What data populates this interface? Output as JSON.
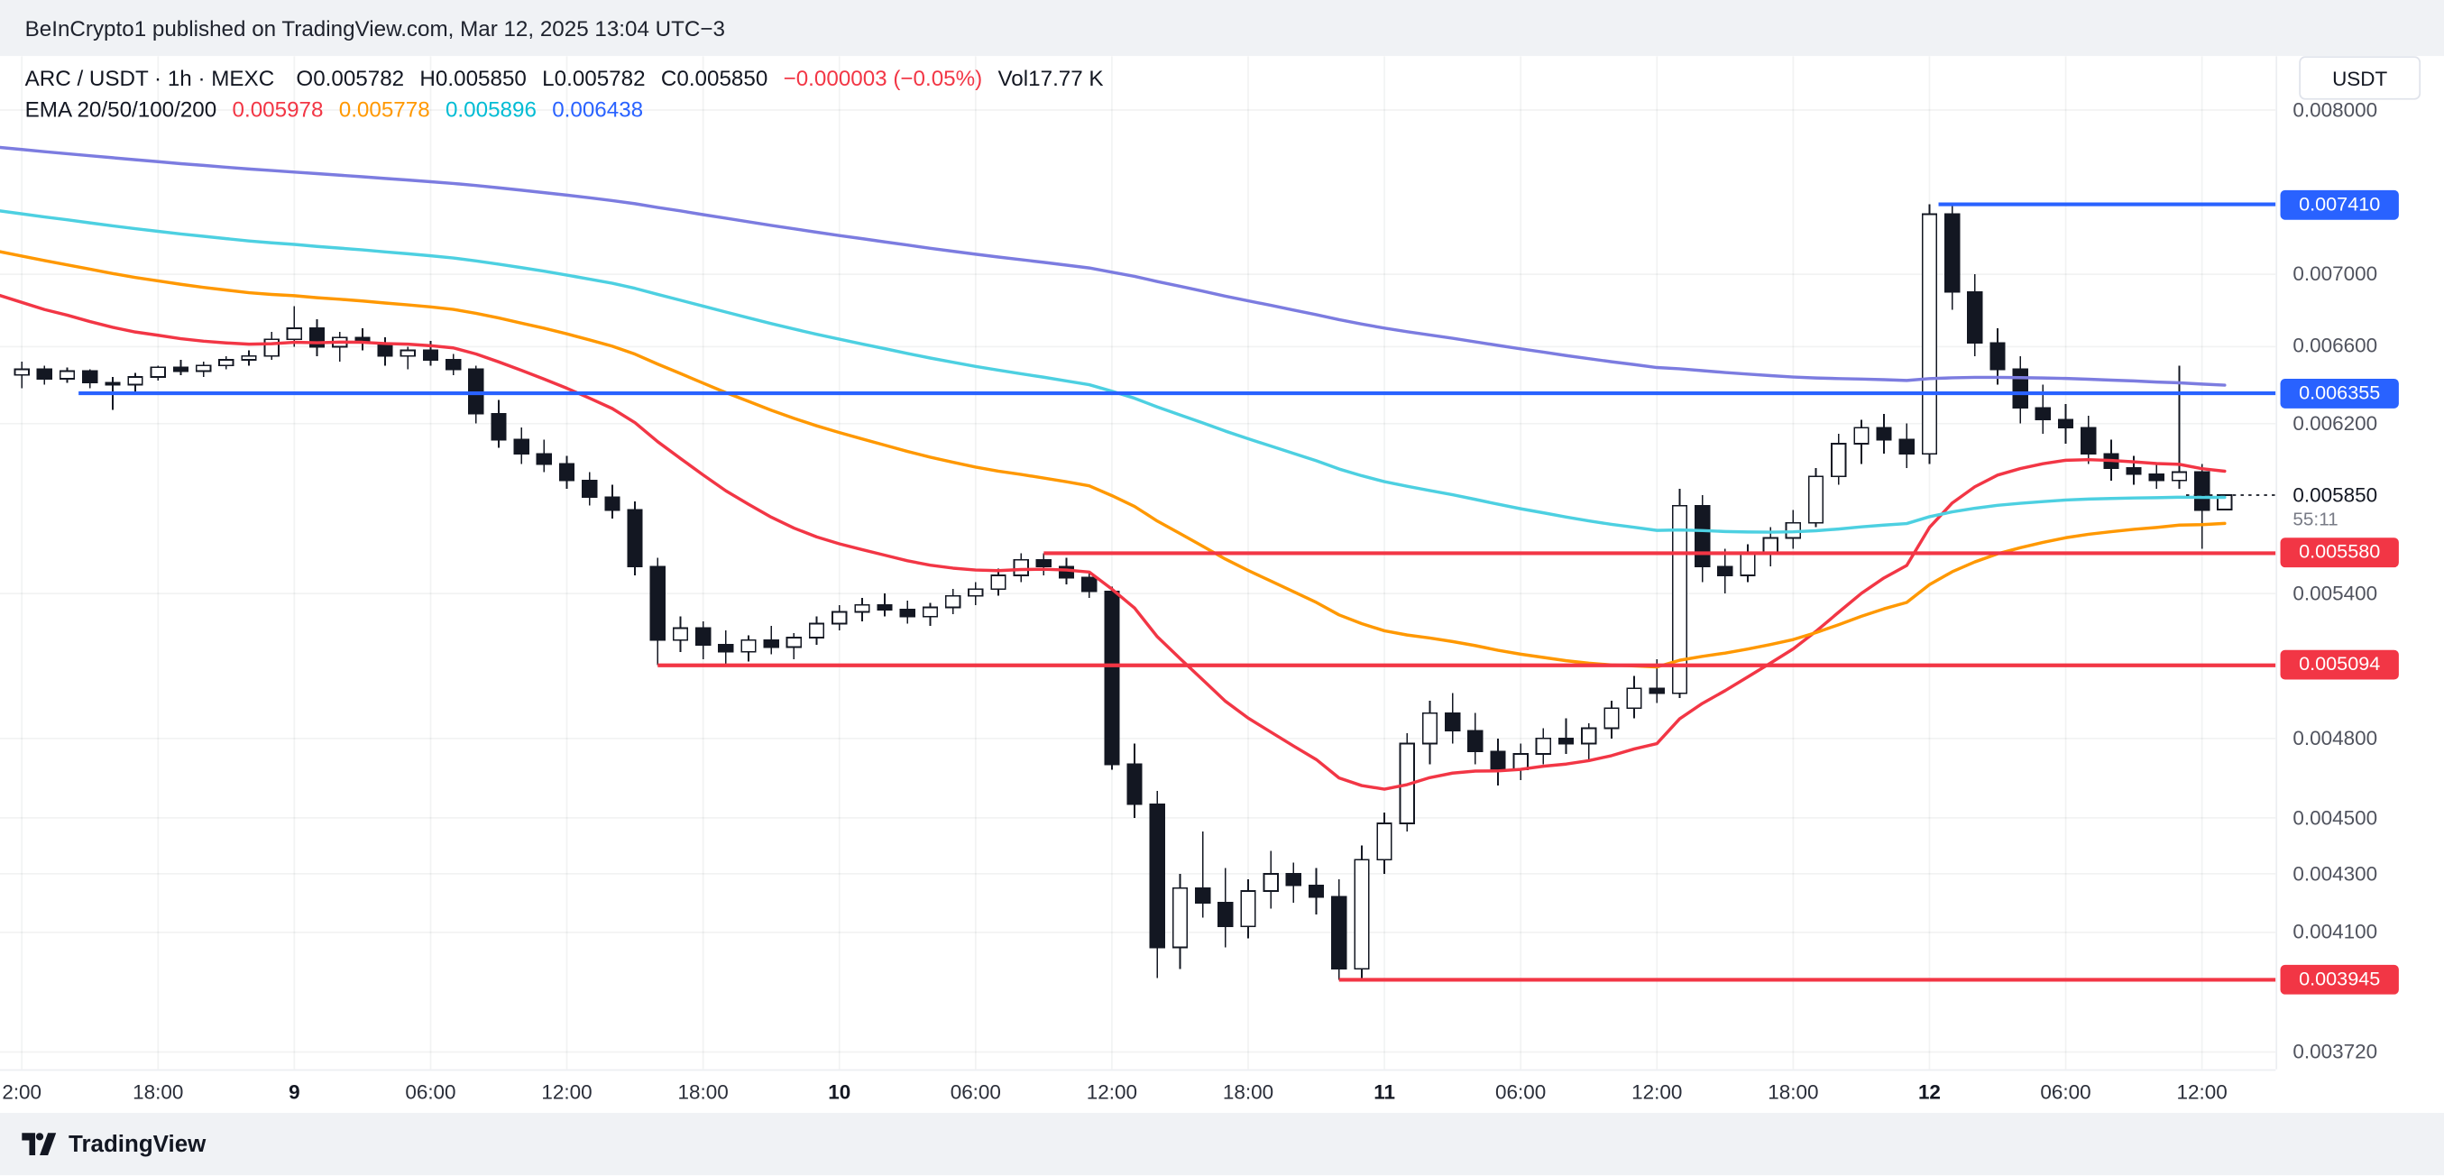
{
  "attribution": "BeInCrypto1 published on TradingView.com, Mar 12, 2025 13:04 UTC−3",
  "header": {
    "symbol": "ARC / USDT · 1h · MEXC",
    "ohlc": {
      "o_label": "O",
      "o": "0.005782",
      "h_label": "H",
      "h": "0.005850",
      "l_label": "L",
      "l": "0.005782",
      "c_label": "C",
      "c": "0.005850"
    },
    "change": "−0.000003 (−0.05%)",
    "volume_label": "Vol",
    "volume_value": "17.77 K",
    "ema_label": "EMA 20/50/100/200",
    "ema_values": [
      {
        "value": "0.005978",
        "color": "#f23645"
      },
      {
        "value": "0.005778",
        "color": "#ff9800"
      },
      {
        "value": "0.005896",
        "color": "#00bcd4"
      },
      {
        "value": "0.006438",
        "color": "#2962ff"
      }
    ]
  },
  "currency_button": "USDT",
  "footer": {
    "brand": "TradingView"
  },
  "axis": {
    "price_labels": [
      "0.008000",
      "0.007000",
      "0.006600",
      "0.006200",
      "0.005400",
      "0.004800",
      "0.004500",
      "0.004300",
      "0.004100",
      "0.003720"
    ],
    "current_price": "0.005850",
    "countdown": "55:11",
    "badges": [
      {
        "text": "0.007410",
        "color": "#2962ff"
      },
      {
        "text": "0.006355",
        "color": "#2962ff"
      },
      {
        "text": "0.005580",
        "color": "#f23645"
      },
      {
        "text": "0.005094",
        "color": "#f23645"
      },
      {
        "text": "0.003945",
        "color": "#f23645"
      }
    ],
    "time_labels": [
      {
        "text": "2:00",
        "index": 0
      },
      {
        "text": "18:00",
        "index": 6
      },
      {
        "text": "9",
        "index": 12,
        "bold": true
      },
      {
        "text": "06:00",
        "index": 18
      },
      {
        "text": "12:00",
        "index": 24
      },
      {
        "text": "18:00",
        "index": 30
      },
      {
        "text": "10",
        "index": 36,
        "bold": true
      },
      {
        "text": "06:00",
        "index": 42
      },
      {
        "text": "12:00",
        "index": 48
      },
      {
        "text": "18:00",
        "index": 54
      },
      {
        "text": "11",
        "index": 60,
        "bold": true
      },
      {
        "text": "06:00",
        "index": 66
      },
      {
        "text": "12:00",
        "index": 72
      },
      {
        "text": "18:00",
        "index": 78
      },
      {
        "text": "12",
        "index": 84,
        "bold": true
      },
      {
        "text": "06:00",
        "index": 90
      },
      {
        "text": "12:00",
        "index": 96
      }
    ]
  },
  "chart_data": {
    "type": "candlestick",
    "title": "ARC / USDT · 1h · MEXC",
    "interval": "1h",
    "y_scale": "log",
    "y_range": [
      0.0036683,
      0.0083585
    ],
    "last_price": 0.00585,
    "candles": [
      [
        0.00645,
        0.00652,
        0.00638,
        0.00648
      ],
      [
        0.00648,
        0.0065,
        0.0064,
        0.00643
      ],
      [
        0.00643,
        0.00649,
        0.00641,
        0.00647
      ],
      [
        0.00647,
        0.00648,
        0.00638,
        0.00641
      ],
      [
        0.00641,
        0.00644,
        0.00627,
        0.0064
      ],
      [
        0.0064,
        0.00646,
        0.00636,
        0.00644
      ],
      [
        0.00644,
        0.0065,
        0.00642,
        0.00649
      ],
      [
        0.00649,
        0.00653,
        0.00645,
        0.00647
      ],
      [
        0.00647,
        0.00652,
        0.00644,
        0.0065
      ],
      [
        0.0065,
        0.00655,
        0.00648,
        0.00653
      ],
      [
        0.00653,
        0.00658,
        0.0065,
        0.00655
      ],
      [
        0.00655,
        0.00668,
        0.00653,
        0.00664
      ],
      [
        0.00664,
        0.00682,
        0.0066,
        0.0067
      ],
      [
        0.0067,
        0.00675,
        0.00655,
        0.0066
      ],
      [
        0.0066,
        0.00668,
        0.00652,
        0.00665
      ],
      [
        0.00665,
        0.0067,
        0.00658,
        0.00662
      ],
      [
        0.00662,
        0.00665,
        0.0065,
        0.00655
      ],
      [
        0.00655,
        0.0066,
        0.00648,
        0.00658
      ],
      [
        0.00658,
        0.00663,
        0.0065,
        0.00653
      ],
      [
        0.00653,
        0.00656,
        0.00645,
        0.00648
      ],
      [
        0.00648,
        0.0065,
        0.0062,
        0.00625
      ],
      [
        0.00625,
        0.00632,
        0.00608,
        0.00612
      ],
      [
        0.00612,
        0.00618,
        0.006,
        0.00605
      ],
      [
        0.00605,
        0.00612,
        0.00596,
        0.006
      ],
      [
        0.006,
        0.00604,
        0.00588,
        0.00592
      ],
      [
        0.00592,
        0.00596,
        0.0058,
        0.00584
      ],
      [
        0.00584,
        0.0059,
        0.00574,
        0.00578
      ],
      [
        0.00578,
        0.00582,
        0.00548,
        0.00552
      ],
      [
        0.00552,
        0.00556,
        0.005094,
        0.0052
      ],
      [
        0.0052,
        0.0053,
        0.00515,
        0.00525
      ],
      [
        0.00525,
        0.00528,
        0.00512,
        0.00518
      ],
      [
        0.00518,
        0.00524,
        0.0051,
        0.00515
      ],
      [
        0.00515,
        0.00522,
        0.00511,
        0.0052
      ],
      [
        0.0052,
        0.00526,
        0.00514,
        0.00517
      ],
      [
        0.00517,
        0.00523,
        0.00512,
        0.00521
      ],
      [
        0.00521,
        0.0053,
        0.00518,
        0.00527
      ],
      [
        0.00527,
        0.00535,
        0.00524,
        0.00532
      ],
      [
        0.00532,
        0.00538,
        0.00528,
        0.00535
      ],
      [
        0.00535,
        0.0054,
        0.0053,
        0.00533
      ],
      [
        0.00533,
        0.00537,
        0.00527,
        0.0053
      ],
      [
        0.0053,
        0.00536,
        0.00526,
        0.00534
      ],
      [
        0.00534,
        0.00542,
        0.00531,
        0.00539
      ],
      [
        0.00539,
        0.00545,
        0.00535,
        0.00542
      ],
      [
        0.00542,
        0.00551,
        0.00539,
        0.00548
      ],
      [
        0.00548,
        0.00558,
        0.00545,
        0.00555
      ],
      [
        0.00555,
        0.00558,
        0.00548,
        0.00552
      ],
      [
        0.00552,
        0.00556,
        0.00544,
        0.00547
      ],
      [
        0.00547,
        0.0055,
        0.00538,
        0.00541
      ],
      [
        0.00541,
        0.00543,
        0.00468,
        0.0047
      ],
      [
        0.0047,
        0.00478,
        0.0045,
        0.00455
      ],
      [
        0.00455,
        0.0046,
        0.00395,
        0.00405
      ],
      [
        0.00405,
        0.0043,
        0.00398,
        0.00425
      ],
      [
        0.00425,
        0.00445,
        0.00415,
        0.0042
      ],
      [
        0.0042,
        0.00432,
        0.00405,
        0.00412
      ],
      [
        0.00412,
        0.00428,
        0.00408,
        0.00424
      ],
      [
        0.00424,
        0.00438,
        0.00418,
        0.0043
      ],
      [
        0.0043,
        0.00434,
        0.0042,
        0.00426
      ],
      [
        0.00426,
        0.00432,
        0.00416,
        0.00422
      ],
      [
        0.00422,
        0.00428,
        0.003945,
        0.00398
      ],
      [
        0.00398,
        0.0044,
        0.00395,
        0.00435
      ],
      [
        0.00435,
        0.00452,
        0.0043,
        0.00448
      ],
      [
        0.00448,
        0.00482,
        0.00445,
        0.00478
      ],
      [
        0.00478,
        0.00495,
        0.0047,
        0.0049
      ],
      [
        0.0049,
        0.00498,
        0.00478,
        0.00483
      ],
      [
        0.00483,
        0.0049,
        0.0047,
        0.00475
      ],
      [
        0.00475,
        0.0048,
        0.00462,
        0.00468
      ],
      [
        0.00468,
        0.00478,
        0.00464,
        0.00474
      ],
      [
        0.00474,
        0.00484,
        0.0047,
        0.0048
      ],
      [
        0.0048,
        0.00488,
        0.00474,
        0.00478
      ],
      [
        0.00478,
        0.00486,
        0.00472,
        0.00484
      ],
      [
        0.00484,
        0.00495,
        0.0048,
        0.00492
      ],
      [
        0.00492,
        0.00505,
        0.00488,
        0.005
      ],
      [
        0.005,
        0.00512,
        0.00494,
        0.00498
      ],
      [
        0.00498,
        0.00588,
        0.00496,
        0.0058
      ],
      [
        0.0058,
        0.00585,
        0.00545,
        0.00552
      ],
      [
        0.00552,
        0.0056,
        0.0054,
        0.00548
      ],
      [
        0.00548,
        0.00562,
        0.00545,
        0.00558
      ],
      [
        0.00558,
        0.0057,
        0.00552,
        0.00565
      ],
      [
        0.00565,
        0.00578,
        0.0056,
        0.00572
      ],
      [
        0.00572,
        0.00598,
        0.0057,
        0.00594
      ],
      [
        0.00594,
        0.00615,
        0.0059,
        0.0061
      ],
      [
        0.0061,
        0.00622,
        0.006,
        0.00618
      ],
      [
        0.00618,
        0.00625,
        0.00605,
        0.00612
      ],
      [
        0.00612,
        0.0062,
        0.00598,
        0.00605
      ],
      [
        0.00605,
        0.00741,
        0.006,
        0.00735
      ],
      [
        0.00735,
        0.00741,
        0.0068,
        0.0069
      ],
      [
        0.0069,
        0.007,
        0.00655,
        0.00662
      ],
      [
        0.00662,
        0.0067,
        0.0064,
        0.00648
      ],
      [
        0.00648,
        0.00655,
        0.0062,
        0.00628
      ],
      [
        0.00628,
        0.0064,
        0.00615,
        0.00622
      ],
      [
        0.00622,
        0.0063,
        0.0061,
        0.00618
      ],
      [
        0.00618,
        0.00624,
        0.006,
        0.00605
      ],
      [
        0.00605,
        0.00612,
        0.00592,
        0.00598
      ],
      [
        0.00598,
        0.00604,
        0.0059,
        0.00595
      ],
      [
        0.00595,
        0.006,
        0.00588,
        0.00592
      ],
      [
        0.00592,
        0.0065,
        0.00588,
        0.00596
      ],
      [
        0.00596,
        0.006,
        0.0056,
        0.00578
      ],
      [
        0.005782,
        0.00585,
        0.005782,
        0.00585
      ]
    ],
    "emas": [
      {
        "period": 20,
        "seed": 0.00688,
        "color": "#f23645"
      },
      {
        "period": 50,
        "seed": 0.00713,
        "color": "#ff9800"
      },
      {
        "period": 100,
        "seed": 0.00737,
        "color": "#4dd0e1"
      },
      {
        "period": 200,
        "seed": 0.00776,
        "color": "#7c7ce0"
      }
    ],
    "h_lines": [
      {
        "price": 0.00741,
        "start_index": 84.4,
        "color": "#2962ff"
      },
      {
        "price": 0.006355,
        "start_index": 2.5,
        "color": "#2962ff"
      },
      {
        "price": 0.00558,
        "start_index": 45,
        "color": "#f23645"
      },
      {
        "price": 0.005094,
        "start_index": 28,
        "color": "#f23645"
      },
      {
        "price": 0.003945,
        "start_index": 58,
        "color": "#f23645"
      }
    ]
  }
}
